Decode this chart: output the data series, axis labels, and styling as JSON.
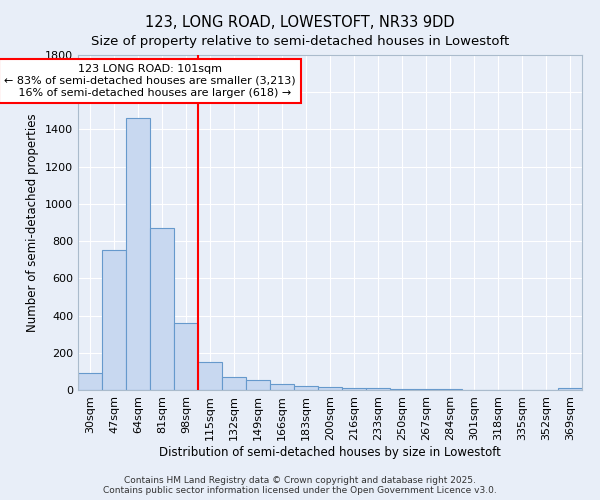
{
  "title1": "123, LONG ROAD, LOWESTOFT, NR33 9DD",
  "title2": "Size of property relative to semi-detached houses in Lowestoft",
  "xlabel": "Distribution of semi-detached houses by size in Lowestoft",
  "ylabel": "Number of semi-detached properties",
  "categories": [
    "30sqm",
    "47sqm",
    "64sqm",
    "81sqm",
    "98sqm",
    "115sqm",
    "132sqm",
    "149sqm",
    "166sqm",
    "183sqm",
    "200sqm",
    "216sqm",
    "233sqm",
    "250sqm",
    "267sqm",
    "284sqm",
    "301sqm",
    "318sqm",
    "335sqm",
    "352sqm",
    "369sqm"
  ],
  "values": [
    90,
    750,
    1460,
    870,
    360,
    150,
    70,
    55,
    30,
    20,
    15,
    10,
    10,
    8,
    5,
    3,
    2,
    1,
    0,
    0,
    10
  ],
  "bar_color": "#c8d8f0",
  "bar_edge_color": "#6699cc",
  "background_color": "#e8eef8",
  "grid_color": "#ffffff",
  "vline_x": 4.5,
  "vline_color": "red",
  "annotation_line1": "123 LONG ROAD: 101sqm",
  "annotation_line2": "← 83% of semi-detached houses are smaller (3,213)",
  "annotation_line3": "   16% of semi-detached houses are larger (618) →",
  "annotation_box_color": "white",
  "annotation_box_edge_color": "red",
  "ylim": [
    0,
    1800
  ],
  "yticks": [
    0,
    200,
    400,
    600,
    800,
    1000,
    1200,
    1400,
    1600,
    1800
  ],
  "footer1": "Contains HM Land Registry data © Crown copyright and database right 2025.",
  "footer2": "Contains public sector information licensed under the Open Government Licence v3.0.",
  "title_fontsize": 10.5,
  "subtitle_fontsize": 9.5,
  "tick_fontsize": 8,
  "ylabel_fontsize": 8.5,
  "xlabel_fontsize": 8.5,
  "annotation_fontsize": 8,
  "footer_fontsize": 6.5
}
